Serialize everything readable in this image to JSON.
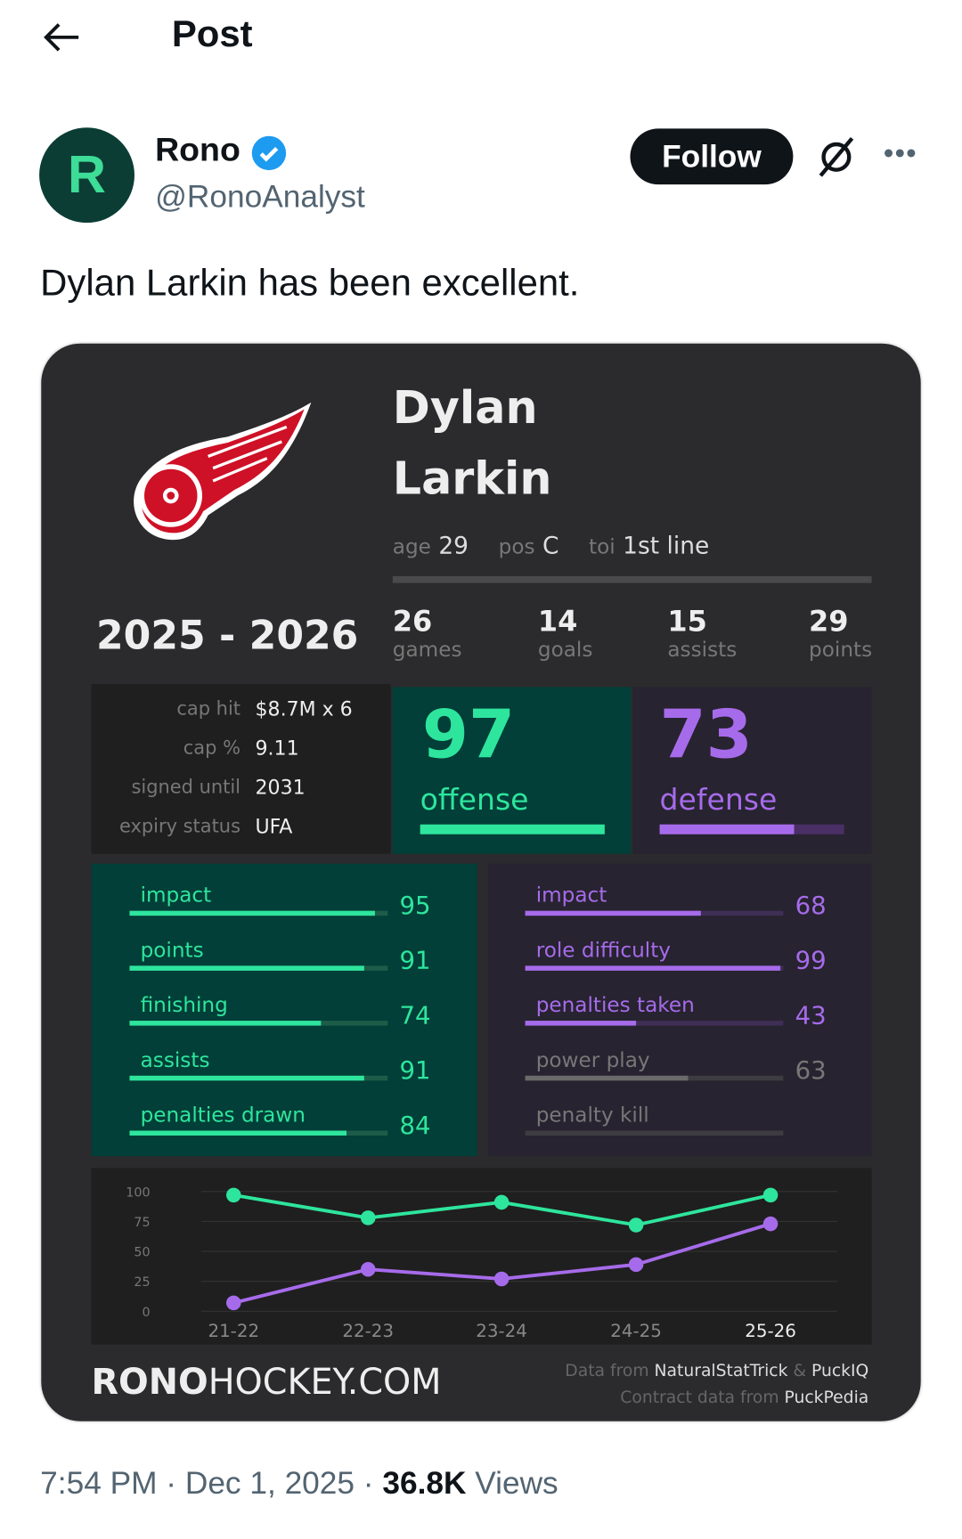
{
  "header": {
    "title": "Post"
  },
  "author": {
    "name": "Rono",
    "handle": "@RonoAnalyst",
    "avatar_letter": "R",
    "follow_label": "Follow"
  },
  "tweet": {
    "text": "Dylan Larkin has been excellent."
  },
  "card": {
    "first_name": "Dylan",
    "last_name": "Larkin",
    "bio": [
      {
        "label": "age",
        "value": "29"
      },
      {
        "label": "pos",
        "value": "C"
      },
      {
        "label": "toi",
        "value": "1st line"
      }
    ],
    "season": "2025 - 2026",
    "stats": [
      {
        "value": "26",
        "label": "games"
      },
      {
        "value": "14",
        "label": "goals"
      },
      {
        "value": "15",
        "label": "assists"
      },
      {
        "value": "29",
        "label": "points"
      }
    ],
    "contract": [
      {
        "label": "cap hit",
        "value": "$8.7M x 6"
      },
      {
        "label": "cap %",
        "value": "9.11"
      },
      {
        "label": "signed until",
        "value": "2031"
      },
      {
        "label": "expiry status",
        "value": "UFA"
      }
    ],
    "offense": {
      "value": "97",
      "label": "offense"
    },
    "defense": {
      "value": "73",
      "label": "defense"
    },
    "offense_stats": [
      {
        "label": "impact",
        "value": "95"
      },
      {
        "label": "points",
        "value": "91"
      },
      {
        "label": "finishing",
        "value": "74"
      },
      {
        "label": "assists",
        "value": "91"
      },
      {
        "label": "penalties drawn",
        "value": "84"
      }
    ],
    "defense_stats": [
      {
        "label": "impact",
        "value": "68"
      },
      {
        "label": "role difficulty",
        "value": "99"
      },
      {
        "label": "penalties taken",
        "value": "43"
      },
      {
        "label": "power play",
        "value": "63",
        "muted": true
      },
      {
        "label": "penalty kill",
        "value": null,
        "muted": true
      }
    ],
    "brand_bold": "RONO",
    "brand_rest": "HOCKEY.COM",
    "source1_pre": "Data from ",
    "source1_a": "NaturalStatTrick",
    "source1_amp": " & ",
    "source1_b": "PuckIQ",
    "source2_pre": "Contract data from ",
    "source2_a": "PuckPedia",
    "colors": {
      "green": "#2ee59d",
      "purple": "#a66bea",
      "green_bg": "#023f38",
      "purple_bg": "#272330"
    }
  },
  "chart_data": {
    "type": "line",
    "categories": [
      "21-22",
      "22-23",
      "23-24",
      "24-25",
      "25-26"
    ],
    "yticks": [
      100,
      75,
      50,
      25,
      0
    ],
    "ylim": [
      0,
      100
    ],
    "series": [
      {
        "name": "offense",
        "color": "#2ee59d",
        "values": [
          97,
          78,
          91,
          72,
          97
        ]
      },
      {
        "name": "defense",
        "color": "#a66bea",
        "values": [
          7,
          35,
          27,
          39,
          73
        ]
      }
    ]
  },
  "footer": {
    "time": "7:54 PM",
    "date": "Dec 1, 2025",
    "views": "36.8K",
    "views_label": "Views"
  }
}
